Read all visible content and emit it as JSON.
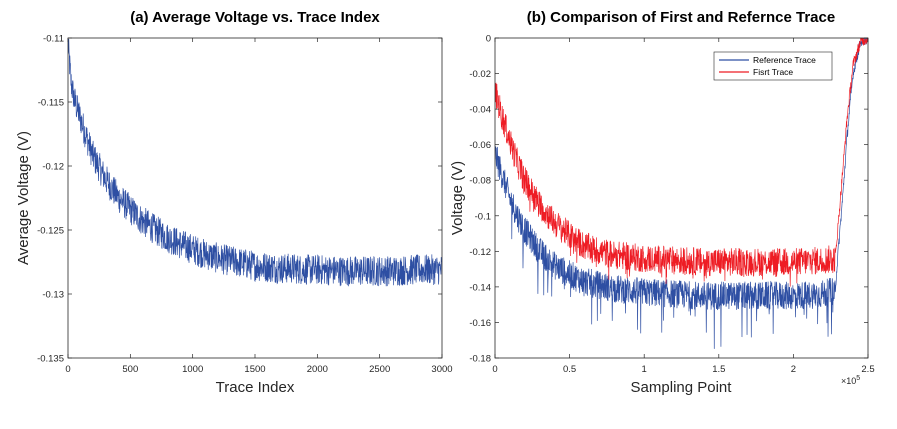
{
  "chart_data": [
    {
      "type": "line",
      "title": "(a) Average Voltage vs. Trace Index",
      "xlabel": "Trace Index",
      "ylabel": "Average Voltage (V)",
      "xlim": [
        0,
        3000
      ],
      "ylim": [
        -0.135,
        -0.11
      ],
      "xticks": [
        "0",
        "500",
        "1000",
        "1500",
        "2000",
        "2500",
        "3000"
      ],
      "yticks": [
        "-0.11",
        "-0.115",
        "-0.12",
        "-0.125",
        "-0.13",
        "-0.135"
      ],
      "grid": false,
      "series": [
        {
          "color": "#2e4fa3",
          "x": [
            0,
            25,
            50,
            100,
            150,
            200,
            300,
            400,
            500,
            600,
            700,
            800,
            900,
            1000,
            1100,
            1200,
            1300,
            1400,
            1500,
            1600,
            1700,
            1800,
            1900,
            2000,
            2200,
            2400,
            2600,
            2800,
            3000
          ],
          "y": [
            -0.1105,
            -0.1135,
            -0.1148,
            -0.1163,
            -0.1178,
            -0.1192,
            -0.121,
            -0.1224,
            -0.1234,
            -0.1243,
            -0.125,
            -0.1256,
            -0.1261,
            -0.1265,
            -0.1269,
            -0.1272,
            -0.1274,
            -0.1276,
            -0.1278,
            -0.1279,
            -0.128,
            -0.128,
            -0.1281,
            -0.1281,
            -0.1282,
            -0.1282,
            -0.1282,
            -0.1281,
            -0.1281
          ],
          "noise_amplitude": 0.0012
        }
      ]
    },
    {
      "type": "line",
      "title": "(b) Comparison of First and Refernce Trace",
      "xlabel": "Sampling Point",
      "ylabel": "Voltage (V)",
      "x_multiplier": "×10",
      "x_multiplier_exp": "5",
      "xlim": [
        0,
        2.5
      ],
      "ylim": [
        -0.18,
        0
      ],
      "xticks": [
        "0",
        "0.5",
        "1",
        "1.5",
        "2",
        "2.5"
      ],
      "yticks": [
        "0",
        "-0.02",
        "-0.04",
        "-0.06",
        "-0.08",
        "-0.1",
        "-0.12",
        "-0.14",
        "-0.16",
        "-0.18"
      ],
      "grid": false,
      "legend_position": "top-right",
      "series": [
        {
          "name": "Reference Trace",
          "color": "#2e4fa3",
          "x": [
            0,
            0.05,
            0.1,
            0.15,
            0.2,
            0.3,
            0.4,
            0.5,
            0.6,
            0.7,
            0.8,
            1.0,
            1.2,
            1.4,
            1.6,
            1.8,
            2.0,
            2.2,
            2.28,
            2.3,
            2.33,
            2.36,
            2.4,
            2.45,
            2.5
          ],
          "y": [
            -0.065,
            -0.078,
            -0.09,
            -0.1,
            -0.108,
            -0.12,
            -0.128,
            -0.133,
            -0.137,
            -0.139,
            -0.141,
            -0.143,
            -0.144,
            -0.145,
            -0.145,
            -0.145,
            -0.145,
            -0.144,
            -0.142,
            -0.12,
            -0.09,
            -0.055,
            -0.02,
            -0.002,
            0
          ],
          "noise_amplitude": 0.008,
          "spike_depth": 0.025
        },
        {
          "name": "Fisrt Trace",
          "color": "#ee1c24",
          "x": [
            0,
            0.05,
            0.1,
            0.15,
            0.2,
            0.3,
            0.4,
            0.5,
            0.6,
            0.7,
            0.8,
            1.0,
            1.2,
            1.4,
            1.6,
            1.8,
            2.0,
            2.2,
            2.28,
            2.3,
            2.33,
            2.36,
            2.4,
            2.45,
            2.5
          ],
          "y": [
            -0.03,
            -0.045,
            -0.058,
            -0.07,
            -0.08,
            -0.094,
            -0.104,
            -0.111,
            -0.117,
            -0.12,
            -0.122,
            -0.124,
            -0.125,
            -0.126,
            -0.126,
            -0.126,
            -0.126,
            -0.125,
            -0.124,
            -0.105,
            -0.075,
            -0.045,
            -0.015,
            -0.002,
            0
          ],
          "noise_amplitude": 0.008,
          "spike_depth": 0.008
        }
      ]
    }
  ]
}
